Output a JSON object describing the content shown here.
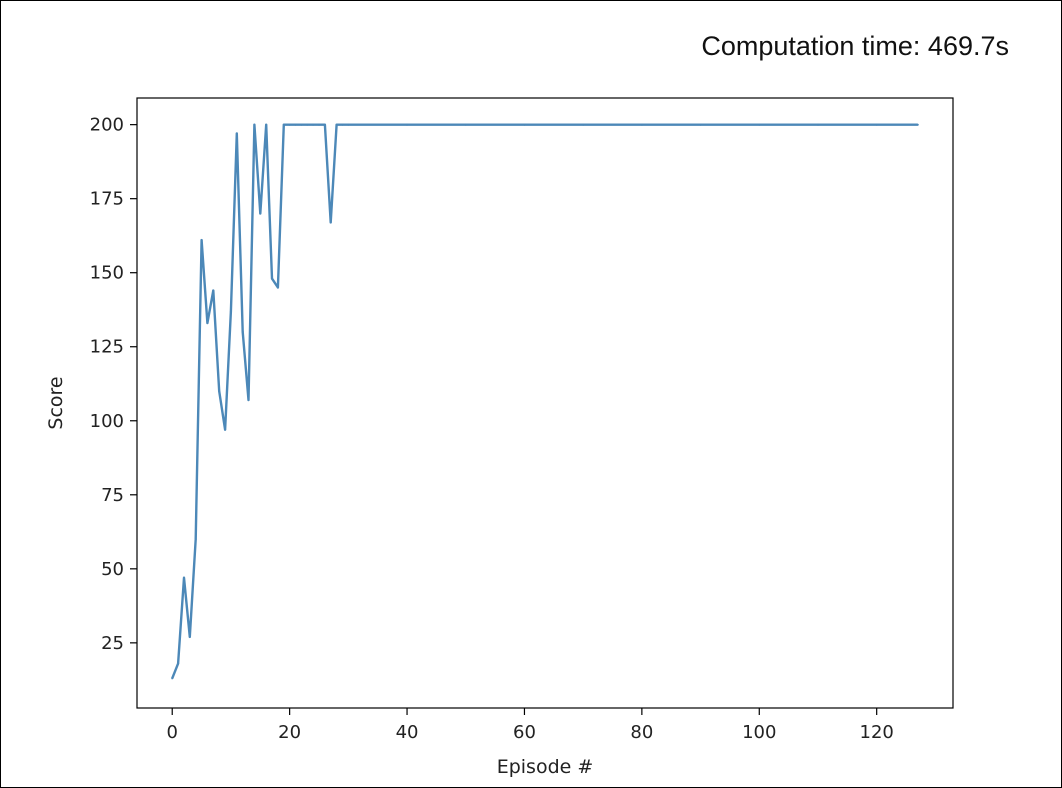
{
  "header": {
    "computation_time": "Computation time: 469.7s"
  },
  "chart_data": {
    "type": "line",
    "title": "",
    "xlabel": "Episode #",
    "ylabel": "Score",
    "xlim": [
      -6,
      133
    ],
    "ylim": [
      3,
      209
    ],
    "xticks": [
      0,
      20,
      40,
      60,
      80,
      100,
      120
    ],
    "yticks": [
      25,
      50,
      75,
      100,
      125,
      150,
      175,
      200
    ],
    "grid": false,
    "line_color": "#4c88b8",
    "series": [
      {
        "x": [
          0,
          1,
          2,
          3,
          4,
          5,
          6,
          7,
          8,
          9,
          10,
          11,
          12,
          13,
          14,
          15,
          16,
          17,
          18,
          19,
          20,
          21,
          22,
          23,
          24,
          25,
          26,
          27,
          28,
          29,
          30,
          40,
          50,
          60,
          70,
          80,
          90,
          100,
          110,
          120,
          127
        ],
        "values": [
          13,
          18,
          47,
          27,
          60,
          161,
          133,
          144,
          110,
          97,
          137,
          197,
          130,
          107,
          200,
          170,
          200,
          148,
          145,
          200,
          200,
          200,
          200,
          200,
          200,
          200,
          200,
          167,
          200,
          200,
          200,
          200,
          200,
          200,
          200,
          200,
          200,
          200,
          200,
          200,
          200
        ]
      }
    ]
  }
}
